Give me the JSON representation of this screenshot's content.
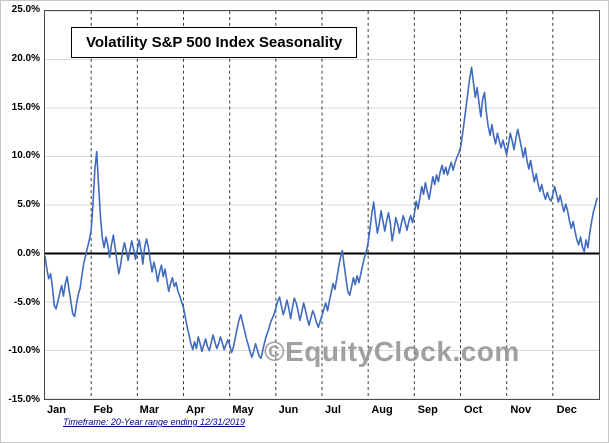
{
  "chart_data": {
    "type": "line",
    "title": "Volatility S&P 500 Index Seasonality",
    "watermark": "©EquityClock.com",
    "footnote": "Timeframe: 20-Year range ending 12/31/2019",
    "x_categories": [
      "Jan",
      "Feb",
      "Mar",
      "Apr",
      "May",
      "Jun",
      "Jul",
      "Aug",
      "Sep",
      "Oct",
      "Nov",
      "Dec"
    ],
    "ylim": [
      -15,
      25
    ],
    "yticks": [
      25,
      20,
      15,
      10,
      5,
      0,
      -5,
      -10,
      -15
    ],
    "ytick_format": "percent_1dp",
    "grid": {
      "horizontal": "solid-light-gray",
      "vertical": "dashed-at-month-boundaries"
    },
    "zero_line": true,
    "line_color": "#3f6bbf",
    "legend": "none",
    "series": [
      {
        "name": "Volatility S&P 500 Index Seasonality",
        "points": [
          [
            0.0,
            -0.3
          ],
          [
            0.04,
            -1.6
          ],
          [
            0.08,
            -2.6
          ],
          [
            0.12,
            -2.1
          ],
          [
            0.16,
            -3.4
          ],
          [
            0.2,
            -5.4
          ],
          [
            0.24,
            -5.7
          ],
          [
            0.28,
            -4.9
          ],
          [
            0.32,
            -4.1
          ],
          [
            0.36,
            -3.3
          ],
          [
            0.4,
            -4.4
          ],
          [
            0.44,
            -3.1
          ],
          [
            0.48,
            -2.4
          ],
          [
            0.52,
            -3.7
          ],
          [
            0.56,
            -4.9
          ],
          [
            0.6,
            -6.2
          ],
          [
            0.64,
            -6.5
          ],
          [
            0.68,
            -5.3
          ],
          [
            0.72,
            -4.2
          ],
          [
            0.76,
            -3.6
          ],
          [
            0.8,
            -2.2
          ],
          [
            0.84,
            -1.0
          ],
          [
            0.88,
            -0.2
          ],
          [
            0.92,
            0.6
          ],
          [
            0.96,
            1.4
          ],
          [
            1.0,
            2.4
          ],
          [
            1.04,
            5.2
          ],
          [
            1.08,
            8.6
          ],
          [
            1.12,
            10.5
          ],
          [
            1.16,
            7.2
          ],
          [
            1.2,
            3.9
          ],
          [
            1.24,
            1.6
          ],
          [
            1.28,
            0.6
          ],
          [
            1.32,
            1.7
          ],
          [
            1.36,
            0.9
          ],
          [
            1.4,
            -0.4
          ],
          [
            1.44,
            0.9
          ],
          [
            1.48,
            1.9
          ],
          [
            1.52,
            0.6
          ],
          [
            1.56,
            -0.9
          ],
          [
            1.6,
            -2.1
          ],
          [
            1.64,
            -1.1
          ],
          [
            1.68,
            0.2
          ],
          [
            1.72,
            1.1
          ],
          [
            1.76,
            0.3
          ],
          [
            1.8,
            -0.7
          ],
          [
            1.84,
            0.4
          ],
          [
            1.88,
            1.3
          ],
          [
            1.92,
            0.4
          ],
          [
            1.96,
            -0.6
          ],
          [
            2.0,
            0.4
          ],
          [
            2.04,
            1.4
          ],
          [
            2.08,
            0.3
          ],
          [
            2.12,
            -1.1
          ],
          [
            2.16,
            0.7
          ],
          [
            2.2,
            1.5
          ],
          [
            2.24,
            0.6
          ],
          [
            2.28,
            -0.7
          ],
          [
            2.32,
            -1.9
          ],
          [
            2.36,
            -0.9
          ],
          [
            2.4,
            -1.7
          ],
          [
            2.44,
            -2.9
          ],
          [
            2.48,
            -1.9
          ],
          [
            2.52,
            -1.2
          ],
          [
            2.56,
            -2.4
          ],
          [
            2.6,
            -1.6
          ],
          [
            2.64,
            -2.8
          ],
          [
            2.68,
            -3.9
          ],
          [
            2.72,
            -3.1
          ],
          [
            2.76,
            -2.5
          ],
          [
            2.8,
            -3.4
          ],
          [
            2.84,
            -3.0
          ],
          [
            2.88,
            -3.9
          ],
          [
            2.92,
            -4.4
          ],
          [
            2.96,
            -5.0
          ],
          [
            3.0,
            -5.6
          ],
          [
            3.04,
            -6.6
          ],
          [
            3.08,
            -7.6
          ],
          [
            3.12,
            -8.4
          ],
          [
            3.16,
            -9.3
          ],
          [
            3.2,
            -9.9
          ],
          [
            3.24,
            -9.1
          ],
          [
            3.28,
            -9.8
          ],
          [
            3.32,
            -8.6
          ],
          [
            3.36,
            -9.3
          ],
          [
            3.4,
            -10.1
          ],
          [
            3.44,
            -9.4
          ],
          [
            3.48,
            -8.8
          ],
          [
            3.52,
            -9.6
          ],
          [
            3.56,
            -10.0
          ],
          [
            3.6,
            -9.2
          ],
          [
            3.64,
            -8.4
          ],
          [
            3.68,
            -9.1
          ],
          [
            3.72,
            -9.8
          ],
          [
            3.76,
            -9.3
          ],
          [
            3.8,
            -8.6
          ],
          [
            3.84,
            -9.2
          ],
          [
            3.88,
            -9.9
          ],
          [
            3.92,
            -9.4
          ],
          [
            3.96,
            -8.9
          ],
          [
            4.0,
            -9.4
          ],
          [
            4.04,
            -10.2
          ],
          [
            4.08,
            -9.7
          ],
          [
            4.12,
            -8.7
          ],
          [
            4.16,
            -7.8
          ],
          [
            4.2,
            -6.9
          ],
          [
            4.24,
            -6.3
          ],
          [
            4.28,
            -7.1
          ],
          [
            4.32,
            -7.9
          ],
          [
            4.36,
            -8.7
          ],
          [
            4.4,
            -9.4
          ],
          [
            4.44,
            -10.1
          ],
          [
            4.48,
            -10.7
          ],
          [
            4.52,
            -10.1
          ],
          [
            4.56,
            -9.3
          ],
          [
            4.6,
            -9.9
          ],
          [
            4.64,
            -10.6
          ],
          [
            4.68,
            -10.8
          ],
          [
            4.72,
            -9.9
          ],
          [
            4.76,
            -9.1
          ],
          [
            4.8,
            -8.4
          ],
          [
            4.84,
            -7.9
          ],
          [
            4.88,
            -7.2
          ],
          [
            4.92,
            -6.7
          ],
          [
            4.96,
            -6.3
          ],
          [
            5.0,
            -5.6
          ],
          [
            5.04,
            -4.9
          ],
          [
            5.08,
            -4.5
          ],
          [
            5.12,
            -5.4
          ],
          [
            5.16,
            -6.3
          ],
          [
            5.2,
            -5.7
          ],
          [
            5.24,
            -4.8
          ],
          [
            5.28,
            -5.6
          ],
          [
            5.32,
            -6.7
          ],
          [
            5.36,
            -5.6
          ],
          [
            5.4,
            -4.6
          ],
          [
            5.44,
            -5.1
          ],
          [
            5.48,
            -5.9
          ],
          [
            5.52,
            -6.9
          ],
          [
            5.56,
            -6.1
          ],
          [
            5.6,
            -5.1
          ],
          [
            5.64,
            -5.8
          ],
          [
            5.68,
            -6.7
          ],
          [
            5.72,
            -7.4
          ],
          [
            5.76,
            -6.6
          ],
          [
            5.8,
            -5.9
          ],
          [
            5.84,
            -6.4
          ],
          [
            5.88,
            -7.1
          ],
          [
            5.92,
            -7.6
          ],
          [
            5.96,
            -7.0
          ],
          [
            6.0,
            -6.4
          ],
          [
            6.04,
            -5.7
          ],
          [
            6.08,
            -5.1
          ],
          [
            6.12,
            -5.9
          ],
          [
            6.16,
            -4.9
          ],
          [
            6.2,
            -4.0
          ],
          [
            6.24,
            -3.1
          ],
          [
            6.28,
            -3.7
          ],
          [
            6.32,
            -2.6
          ],
          [
            6.36,
            -1.4
          ],
          [
            6.4,
            -0.4
          ],
          [
            6.44,
            0.3
          ],
          [
            6.48,
            -1.2
          ],
          [
            6.52,
            -2.6
          ],
          [
            6.56,
            -3.9
          ],
          [
            6.6,
            -4.3
          ],
          [
            6.64,
            -3.4
          ],
          [
            6.68,
            -2.5
          ],
          [
            6.72,
            -3.2
          ],
          [
            6.76,
            -2.3
          ],
          [
            6.8,
            -3.0
          ],
          [
            6.84,
            -2.1
          ],
          [
            6.88,
            -1.2
          ],
          [
            6.92,
            -0.4
          ],
          [
            6.96,
            0.2
          ],
          [
            7.0,
            1.1
          ],
          [
            7.04,
            2.6
          ],
          [
            7.08,
            4.1
          ],
          [
            7.12,
            5.3
          ],
          [
            7.16,
            3.6
          ],
          [
            7.2,
            2.1
          ],
          [
            7.24,
            3.1
          ],
          [
            7.28,
            4.4
          ],
          [
            7.32,
            3.3
          ],
          [
            7.36,
            2.3
          ],
          [
            7.4,
            3.4
          ],
          [
            7.44,
            4.2
          ],
          [
            7.48,
            3.1
          ],
          [
            7.52,
            1.3
          ],
          [
            7.56,
            2.4
          ],
          [
            7.6,
            3.7
          ],
          [
            7.64,
            3.0
          ],
          [
            7.68,
            2.1
          ],
          [
            7.72,
            3.1
          ],
          [
            7.76,
            3.9
          ],
          [
            7.8,
            3.2
          ],
          [
            7.84,
            2.4
          ],
          [
            7.88,
            3.3
          ],
          [
            7.92,
            3.9
          ],
          [
            7.96,
            3.2
          ],
          [
            8.0,
            4.1
          ],
          [
            8.04,
            5.4
          ],
          [
            8.08,
            4.6
          ],
          [
            8.12,
            5.7
          ],
          [
            8.16,
            6.9
          ],
          [
            8.2,
            6.1
          ],
          [
            8.24,
            7.3
          ],
          [
            8.28,
            6.4
          ],
          [
            8.32,
            5.6
          ],
          [
            8.36,
            6.7
          ],
          [
            8.4,
            7.9
          ],
          [
            8.44,
            7.1
          ],
          [
            8.48,
            8.1
          ],
          [
            8.52,
            7.4
          ],
          [
            8.56,
            8.4
          ],
          [
            8.6,
            9.1
          ],
          [
            8.64,
            8.2
          ],
          [
            8.68,
            8.9
          ],
          [
            8.72,
            8.1
          ],
          [
            8.76,
            8.8
          ],
          [
            8.8,
            9.4
          ],
          [
            8.84,
            8.6
          ],
          [
            8.88,
            9.3
          ],
          [
            8.92,
            9.9
          ],
          [
            8.96,
            10.3
          ],
          [
            9.0,
            10.9
          ],
          [
            9.04,
            12.2
          ],
          [
            9.08,
            13.6
          ],
          [
            9.12,
            15.1
          ],
          [
            9.16,
            16.6
          ],
          [
            9.2,
            18.1
          ],
          [
            9.24,
            19.2
          ],
          [
            9.28,
            17.6
          ],
          [
            9.32,
            16.1
          ],
          [
            9.36,
            17.1
          ],
          [
            9.4,
            15.6
          ],
          [
            9.44,
            14.1
          ],
          [
            9.48,
            15.9
          ],
          [
            9.52,
            16.6
          ],
          [
            9.56,
            14.6
          ],
          [
            9.6,
            13.1
          ],
          [
            9.64,
            12.2
          ],
          [
            9.68,
            13.3
          ],
          [
            9.72,
            12.1
          ],
          [
            9.76,
            11.3
          ],
          [
            9.8,
            12.4
          ],
          [
            9.84,
            11.6
          ],
          [
            9.88,
            10.9
          ],
          [
            9.92,
            11.7
          ],
          [
            9.96,
            10.9
          ],
          [
            10.0,
            10.2
          ],
          [
            10.04,
            11.3
          ],
          [
            10.08,
            12.4
          ],
          [
            10.12,
            11.6
          ],
          [
            10.16,
            10.7
          ],
          [
            10.2,
            11.9
          ],
          [
            10.24,
            12.8
          ],
          [
            10.28,
            11.9
          ],
          [
            10.32,
            10.9
          ],
          [
            10.36,
            9.9
          ],
          [
            10.4,
            10.9
          ],
          [
            10.44,
            9.6
          ],
          [
            10.48,
            8.7
          ],
          [
            10.52,
            9.6
          ],
          [
            10.56,
            8.4
          ],
          [
            10.6,
            7.4
          ],
          [
            10.64,
            8.2
          ],
          [
            10.68,
            7.2
          ],
          [
            10.72,
            6.4
          ],
          [
            10.76,
            7.1
          ],
          [
            10.8,
            6.2
          ],
          [
            10.84,
            5.6
          ],
          [
            10.88,
            6.3
          ],
          [
            10.92,
            5.7
          ],
          [
            10.96,
            5.4
          ],
          [
            11.0,
            6.1
          ],
          [
            11.04,
            6.9
          ],
          [
            11.08,
            6.1
          ],
          [
            11.12,
            5.3
          ],
          [
            11.16,
            6.0
          ],
          [
            11.2,
            5.1
          ],
          [
            11.24,
            4.3
          ],
          [
            11.28,
            5.1
          ],
          [
            11.32,
            4.4
          ],
          [
            11.36,
            3.4
          ],
          [
            11.4,
            2.6
          ],
          [
            11.44,
            3.3
          ],
          [
            11.48,
            2.3
          ],
          [
            11.52,
            1.4
          ],
          [
            11.56,
            0.9
          ],
          [
            11.6,
            1.7
          ],
          [
            11.64,
            0.7
          ],
          [
            11.68,
            0.2
          ],
          [
            11.72,
            1.4
          ],
          [
            11.76,
            0.6
          ],
          [
            11.8,
            2.1
          ],
          [
            11.84,
            3.3
          ],
          [
            11.88,
            4.3
          ],
          [
            11.92,
            5.0
          ],
          [
            11.96,
            5.7
          ]
        ]
      }
    ]
  }
}
